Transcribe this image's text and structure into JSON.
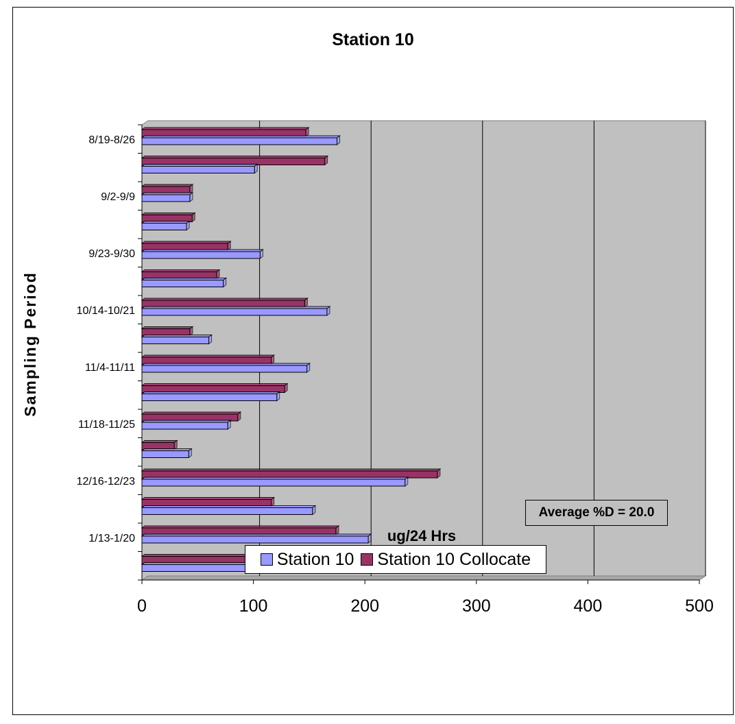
{
  "chart_data": {
    "type": "bar",
    "orientation": "horizontal",
    "title": "Station 10",
    "xlabel": "ug/24 Hrs",
    "ylabel": "Sampling Period",
    "xlim": [
      0,
      500
    ],
    "xticks": [
      0,
      100,
      200,
      300,
      400,
      500
    ],
    "categories": [
      "8/19-8/26",
      "",
      "9/2-9/9",
      "",
      "9/23-9/30",
      "",
      "10/14-10/21",
      "",
      "11/4-11/11",
      "",
      "11/18-11/25",
      "",
      "12/16-12/23",
      "",
      "1/13-1/20",
      ""
    ],
    "series": [
      {
        "name": "Station 10",
        "color": "#9999ff",
        "values": [
          175,
          101,
          43,
          40,
          106,
          73,
          166,
          60,
          148,
          121,
          77,
          42,
          236,
          153,
          203,
          194
        ]
      },
      {
        "name": "Station 10 Collocate",
        "color": "#993366",
        "values": [
          147,
          164,
          43,
          45,
          77,
          67,
          146,
          43,
          116,
          128,
          86,
          29,
          265,
          116,
          174,
          245
        ]
      }
    ],
    "annotation": "Average %D = 20.0",
    "grid": true,
    "legend_position": "bottom"
  }
}
